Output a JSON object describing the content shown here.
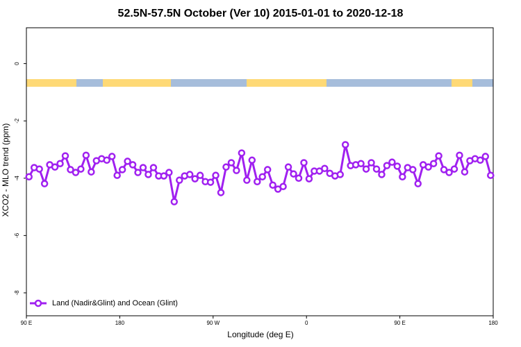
{
  "chart_data": {
    "type": "line",
    "title": "52.5N-57.5N October (Ver 10)   2015-01-01 to 2020-12-18",
    "xlabel": "Longitude (deg E)",
    "ylabel": "XCO2 - MLO trend (ppm)",
    "xlim": [
      90,
      540
    ],
    "ylim": [
      -8.8,
      1.25
    ],
    "xticks": [
      {
        "value": 90,
        "label": "90 E"
      },
      {
        "value": 180,
        "label": "180"
      },
      {
        "value": 270,
        "label": "90 W"
      },
      {
        "value": 360,
        "label": "0"
      },
      {
        "value": 450,
        "label": "90 E"
      },
      {
        "value": 540,
        "label": "180"
      }
    ],
    "yticks": [
      0,
      -2,
      -4,
      -6,
      -8
    ],
    "legend": "bottom-left",
    "x": [
      92.5,
      97.5,
      102.5,
      107.5,
      112.5,
      117.5,
      122.5,
      127.5,
      132.5,
      137.5,
      142.5,
      147.5,
      152.5,
      157.5,
      162.5,
      167.5,
      172.5,
      177.5,
      182.5,
      187.5,
      192.5,
      197.5,
      202.5,
      207.5,
      212.5,
      217.5,
      222.5,
      227.5,
      232.5,
      237.5,
      242.5,
      247.5,
      252.5,
      257.5,
      262.5,
      267.5,
      272.5,
      277.5,
      282.5,
      287.5,
      292.5,
      297.5,
      302.5,
      307.5,
      312.5,
      317.5,
      322.5,
      327.5,
      332.5,
      337.5,
      342.5,
      347.5,
      352.5,
      357.5,
      362.5,
      367.5,
      372.5,
      377.5,
      382.5,
      387.5,
      392.5,
      397.5,
      402.5,
      407.5,
      412.5,
      417.5,
      422.5,
      427.5,
      432.5,
      437.5,
      442.5,
      447.5,
      452.5,
      457.5,
      462.5,
      467.5,
      472.5,
      477.5,
      482.5,
      487.5,
      492.5,
      497.5,
      502.5,
      507.5,
      512.5,
      517.5,
      522.5,
      527.5,
      532.5,
      537.5
    ],
    "series": [
      {
        "name": "Land (Nadir&Glint) and Ocean (Glint)",
        "color": "#a020f0",
        "values": [
          -3.95,
          -3.63,
          -3.68,
          -4.19,
          -3.53,
          -3.61,
          -3.49,
          -3.22,
          -3.7,
          -3.8,
          -3.68,
          -3.2,
          -3.78,
          -3.39,
          -3.32,
          -3.37,
          -3.24,
          -3.9,
          -3.7,
          -3.41,
          -3.53,
          -3.8,
          -3.63,
          -3.87,
          -3.63,
          -3.92,
          -3.92,
          -3.8,
          -4.82,
          -4.07,
          -3.92,
          -3.87,
          -4.02,
          -3.9,
          -4.12,
          -4.14,
          -3.9,
          -4.5,
          -3.61,
          -3.46,
          -3.73,
          -3.12,
          -4.07,
          -3.37,
          -4.12,
          -3.95,
          -3.7,
          -4.24,
          -4.38,
          -4.29,
          -3.61,
          -3.85,
          -4.0,
          -3.46,
          -4.02,
          -3.75,
          -3.75,
          -3.66,
          -3.83,
          -3.92,
          -3.87,
          -2.83,
          -3.56,
          -3.53,
          -3.49,
          -3.68,
          -3.46,
          -3.68,
          -3.87,
          -3.56,
          -3.44,
          -3.58,
          -3.95,
          -3.63,
          -3.7,
          -4.19,
          -3.53,
          -3.61,
          -3.49,
          -3.22,
          -3.7,
          -3.8,
          -3.68,
          -3.2,
          -3.78,
          -3.39,
          -3.32,
          -3.37,
          -3.24,
          -3.9
        ]
      }
    ]
  }
}
